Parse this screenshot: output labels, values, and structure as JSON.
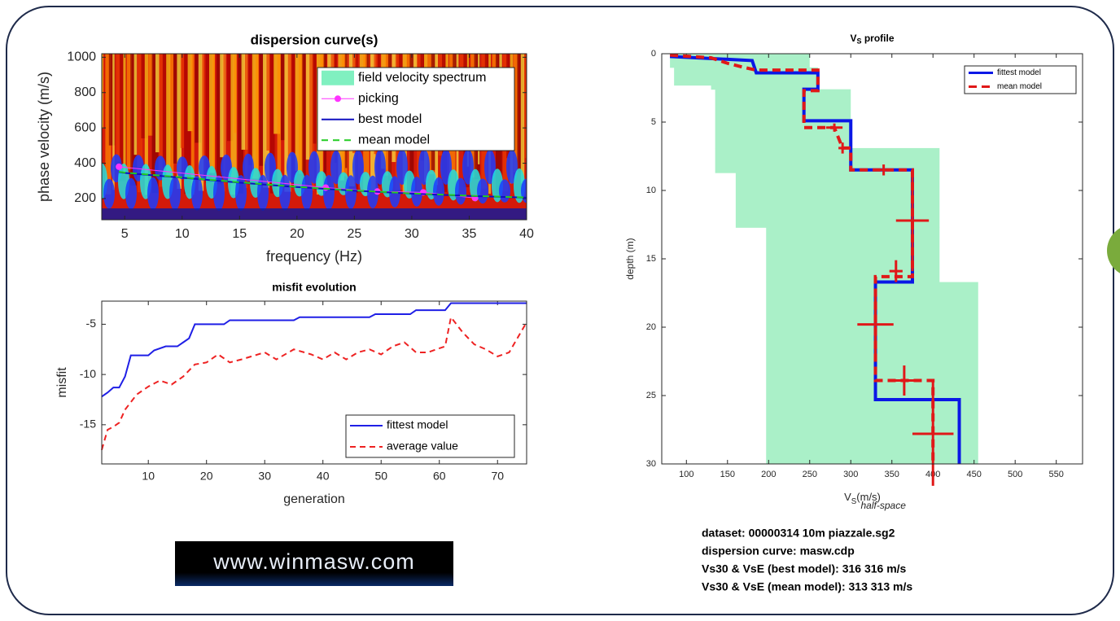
{
  "chart_data": [
    {
      "type": "line",
      "title": "dispersion curve(s)",
      "xlabel": "frequency (Hz)",
      "ylabel": "phase velocity (m/s)",
      "xlim": [
        3,
        40
      ],
      "ylim": [
        80,
        1020
      ],
      "xticks": [
        5,
        10,
        15,
        20,
        25,
        30,
        35,
        40
      ],
      "yticks": [
        200,
        400,
        600,
        800,
        1000
      ],
      "legend": "upper right",
      "spectrum": {
        "name": "field velocity spectrum",
        "color": "#80f0c0"
      },
      "series": [
        {
          "name": "picking",
          "color": "#ff33ff",
          "marker": "circle",
          "width": 1,
          "x": [
            4.5,
            22.5,
            27,
            31,
            35.5
          ],
          "values": [
            380,
            262,
            240,
            235,
            203
          ]
        },
        {
          "name": "best model",
          "color": "#1010c0",
          "width": 2,
          "x": [
            4.5,
            5,
            10,
            15,
            20,
            25,
            30,
            35,
            40
          ],
          "values": [
            350,
            345,
            318,
            290,
            265,
            245,
            228,
            215,
            205
          ]
        },
        {
          "name": "mean model",
          "color": "#22cc22",
          "dash": "8 6",
          "width": 2,
          "x": [
            4.5,
            5,
            10,
            15,
            20,
            25,
            30,
            35,
            40
          ],
          "values": [
            352,
            347,
            320,
            292,
            266,
            246,
            229,
            216,
            206
          ]
        }
      ]
    },
    {
      "type": "line",
      "title": "misfit evolution",
      "xlabel": "generation",
      "ylabel": "misfit",
      "xlim": [
        2,
        75
      ],
      "ylim": [
        -18.9,
        -2.7
      ],
      "xticks": [
        10,
        20,
        30,
        40,
        50,
        60,
        70
      ],
      "yticks": [
        -15,
        -10,
        -5
      ],
      "legend": "lower right",
      "series": [
        {
          "name": "fittest model",
          "color": "#1f1fe6",
          "width": 2,
          "x": [
            2,
            3,
            4,
            5,
            6,
            7,
            10,
            11,
            13,
            15,
            16,
            17,
            18,
            23,
            24,
            35,
            36,
            48,
            49,
            55,
            56,
            61,
            62,
            75
          ],
          "values": [
            -12.2,
            -11.8,
            -11.3,
            -11.3,
            -10.2,
            -8.1,
            -8.1,
            -7.6,
            -7.2,
            -7.2,
            -6.8,
            -6.4,
            -5.0,
            -5.0,
            -4.6,
            -4.6,
            -4.3,
            -4.3,
            -4.0,
            -4.0,
            -3.6,
            -3.6,
            -2.9,
            -2.9
          ]
        },
        {
          "name": "average value",
          "color": "#ee2222",
          "dash": "7 5",
          "width": 2,
          "x": [
            2,
            3,
            4,
            5,
            6,
            8,
            10,
            12,
            14,
            16,
            18,
            20,
            22,
            24,
            26,
            30,
            32,
            35,
            38,
            40,
            42,
            44,
            46,
            48,
            50,
            52,
            54,
            56,
            58,
            61,
            62,
            64,
            66,
            68,
            70,
            72,
            75
          ],
          "values": [
            -17.5,
            -15.5,
            -15.2,
            -14.8,
            -13.5,
            -12.0,
            -11.2,
            -10.6,
            -11.0,
            -10.2,
            -9.0,
            -8.8,
            -8.0,
            -8.8,
            -8.5,
            -7.8,
            -8.5,
            -7.5,
            -8.0,
            -8.5,
            -7.8,
            -8.5,
            -7.8,
            -7.5,
            -8.0,
            -7.2,
            -6.8,
            -7.8,
            -7.8,
            -7.2,
            -4.3,
            -5.8,
            -7.0,
            -7.5,
            -8.2,
            -7.8,
            -4.8
          ]
        }
      ]
    },
    {
      "type": "profile",
      "title": [
        "V",
        "S",
        " profile"
      ],
      "xlabel": [
        "V",
        "S",
        "(m/s)",
        "half-space"
      ],
      "ylabel": "depth (m)",
      "xlim": [
        70,
        582
      ],
      "ylim": [
        0,
        30
      ],
      "y_reversed": true,
      "xticks": [
        100,
        150,
        200,
        250,
        300,
        350,
        400,
        450,
        500,
        550
      ],
      "yticks": [
        0,
        5,
        10,
        15,
        20,
        25,
        30
      ],
      "legend": "upper right",
      "range": {
        "color": "#aaf0c8",
        "top": [
          0,
          1,
          2.3,
          2.6,
          6.9,
          8.7,
          12.7,
          16.7
        ],
        "bottom": [
          1,
          2.3,
          2.6,
          6.9,
          8.7,
          12.7,
          16.7,
          30
        ],
        "low": [
          80,
          85,
          130,
          135,
          135,
          160,
          197,
          197
        ],
        "high": [
          250,
          260,
          260,
          300,
          408,
          408,
          408,
          455
        ]
      },
      "series": [
        {
          "name": "fittest model",
          "color": "#0a18e6",
          "width": 4,
          "x": [
            80,
            180,
            185,
            260,
            260,
            243,
            243,
            300,
            300,
            375,
            375,
            330,
            330,
            432,
            432
          ],
          "values": [
            0.2,
            0.5,
            1.4,
            1.4,
            2.6,
            2.6,
            4.9,
            4.9,
            8.5,
            8.5,
            16.7,
            16.7,
            25.3,
            25.3,
            30
          ]
        },
        {
          "name": "mean model",
          "color": "#e01818",
          "dash": "10 6",
          "width": 4,
          "x": [
            80,
            130,
            150,
            170,
            185,
            260,
            260,
            243,
            243,
            280,
            290,
            300,
            300,
            375,
            375,
            330,
            330,
            400,
            400
          ],
          "values": [
            0.1,
            0.3,
            0.7,
            1.0,
            1.2,
            1.2,
            2.7,
            2.7,
            5.4,
            5.4,
            6.9,
            6.9,
            8.5,
            8.5,
            16.3,
            16.3,
            23.9,
            23.9,
            30
          ]
        }
      ],
      "crosses": {
        "color": "#e01818",
        "x": [
          375,
          355,
          330,
          365,
          400,
          340,
          290,
          280
        ],
        "values": [
          12.2,
          15.9,
          19.8,
          23.9,
          27.8,
          8.5,
          6.9,
          5.4
        ],
        "xerr": [
          20,
          8,
          22,
          15,
          25,
          10,
          5,
          10
        ],
        "yerr": [
          3.7,
          0.8,
          2.5,
          1.1,
          3.8,
          0.4,
          0.4,
          0.3
        ]
      },
      "annotations": [
        "dataset: 00000314 10m piazzale.sg2",
        "dispersion curve: masw.cdp",
        "Vs30 & VsE (best model): 316  316 m/s",
        "Vs30 & VsE (mean model): 313  313 m/s"
      ]
    }
  ],
  "logo": "www.winmasw.com"
}
